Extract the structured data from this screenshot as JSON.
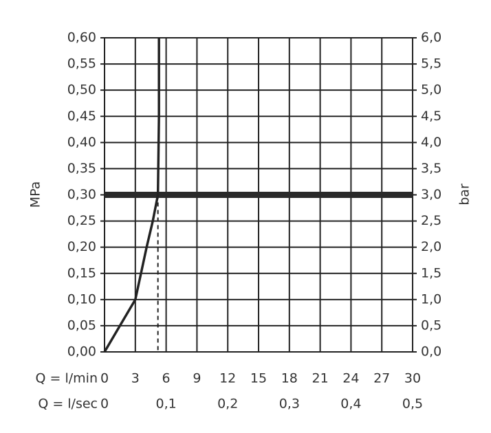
{
  "chart_data": {
    "type": "line",
    "ylabel": "MPa",
    "y2label": "bar",
    "xrow_label": "Q = l/min",
    "x2row_label": "Q = l/sec",
    "xlim": [
      0,
      30
    ],
    "xticks": [
      0,
      3,
      6,
      9,
      12,
      15,
      18,
      21,
      24,
      27,
      30
    ],
    "x2lim": [
      0,
      0.5
    ],
    "x2ticks": [
      0,
      {
        "value": 0.1,
        "label": "0,1"
      },
      {
        "value": 0.2,
        "label": "0,2"
      },
      {
        "value": 0.3,
        "label": "0,3"
      },
      {
        "value": 0.4,
        "label": "0,4"
      },
      {
        "value": 0.5,
        "label": "0,5"
      }
    ],
    "ylim": [
      0,
      0.6
    ],
    "yticks": [
      {
        "value": 0,
        "label": "0,00"
      },
      {
        "value": 0.05,
        "label": "0,05"
      },
      {
        "value": 0.1,
        "label": "0,10"
      },
      {
        "value": 0.15,
        "label": "0,15"
      },
      {
        "value": 0.2,
        "label": "0,20"
      },
      {
        "value": 0.25,
        "label": "0,25"
      },
      {
        "value": 0.3,
        "label": "0,30"
      },
      {
        "value": 0.35,
        "label": "0,35"
      },
      {
        "value": 0.4,
        "label": "0,40"
      },
      {
        "value": 0.45,
        "label": "0,45"
      },
      {
        "value": 0.5,
        "label": "0,50"
      },
      {
        "value": 0.55,
        "label": "0,55"
      },
      {
        "value": 0.6,
        "label": "0,60"
      }
    ],
    "y2lim": [
      0,
      6
    ],
    "y2ticks": [
      {
        "value": 0,
        "label": "0,0"
      },
      {
        "value": 0.5,
        "label": "0,5"
      },
      {
        "value": 1,
        "label": "1,0"
      },
      {
        "value": 1.5,
        "label": "1,5"
      },
      {
        "value": 2,
        "label": "2,0"
      },
      {
        "value": 2.5,
        "label": "2,5"
      },
      {
        "value": 3,
        "label": "3,0"
      },
      {
        "value": 3.5,
        "label": "3,5"
      },
      {
        "value": 4,
        "label": "4,0"
      },
      {
        "value": 4.5,
        "label": "4,5"
      },
      {
        "value": 5,
        "label": "5,0"
      },
      {
        "value": 5.5,
        "label": "5,5"
      },
      {
        "value": 6,
        "label": "6,0"
      }
    ],
    "grid": true,
    "series": [
      {
        "color": "#222222",
        "x": [
          0,
          1.5,
          3,
          4.1,
          4.7,
          5.2,
          5.3,
          5.3
        ],
        "values": [
          0,
          0.05,
          0.1,
          0.2,
          0.25,
          0.3,
          0.45,
          0.6
        ]
      }
    ],
    "hline": 0.3,
    "drop_line": {
      "x": 5.2,
      "y": 0.3
    }
  }
}
